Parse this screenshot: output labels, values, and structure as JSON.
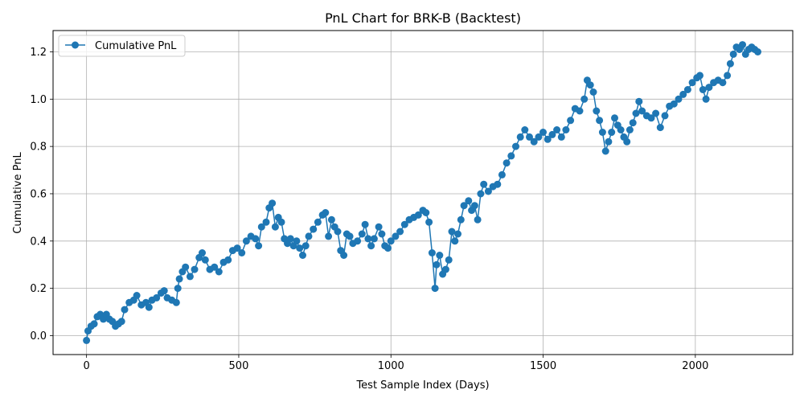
{
  "chart_data": {
    "type": "line",
    "title": "PnL Chart for BRK-B (Backtest)",
    "xlabel": "Test Sample Index (Days)",
    "ylabel": "Cumulative PnL",
    "xlim": [
      -110,
      2320
    ],
    "ylim": [
      -0.08,
      1.29
    ],
    "x_ticks": [
      0,
      500,
      1000,
      1500,
      2000
    ],
    "y_ticks": [
      0.0,
      0.2,
      0.4,
      0.6,
      0.8,
      1.0,
      1.2
    ],
    "grid": true,
    "legend_position": "upper-left",
    "marker": "circle",
    "series": [
      {
        "name": "Cumulative PnL",
        "color": "#1f77b4",
        "points": [
          [
            0,
            -0.02
          ],
          [
            5,
            0.02
          ],
          [
            15,
            0.04
          ],
          [
            25,
            0.05
          ],
          [
            35,
            0.08
          ],
          [
            45,
            0.09
          ],
          [
            55,
            0.07
          ],
          [
            65,
            0.09
          ],
          [
            75,
            0.07
          ],
          [
            85,
            0.06
          ],
          [
            95,
            0.04
          ],
          [
            105,
            0.05
          ],
          [
            115,
            0.06
          ],
          [
            125,
            0.11
          ],
          [
            140,
            0.14
          ],
          [
            155,
            0.15
          ],
          [
            165,
            0.17
          ],
          [
            180,
            0.13
          ],
          [
            195,
            0.14
          ],
          [
            205,
            0.12
          ],
          [
            215,
            0.15
          ],
          [
            230,
            0.16
          ],
          [
            245,
            0.18
          ],
          [
            255,
            0.19
          ],
          [
            265,
            0.16
          ],
          [
            280,
            0.15
          ],
          [
            295,
            0.14
          ],
          [
            300,
            0.2
          ],
          [
            305,
            0.24
          ],
          [
            315,
            0.27
          ],
          [
            325,
            0.29
          ],
          [
            340,
            0.25
          ],
          [
            355,
            0.28
          ],
          [
            370,
            0.33
          ],
          [
            380,
            0.35
          ],
          [
            390,
            0.32
          ],
          [
            405,
            0.28
          ],
          [
            420,
            0.29
          ],
          [
            435,
            0.27
          ],
          [
            450,
            0.31
          ],
          [
            465,
            0.32
          ],
          [
            480,
            0.36
          ],
          [
            495,
            0.37
          ],
          [
            510,
            0.35
          ],
          [
            525,
            0.4
          ],
          [
            540,
            0.42
          ],
          [
            555,
            0.41
          ],
          [
            565,
            0.38
          ],
          [
            575,
            0.46
          ],
          [
            590,
            0.48
          ],
          [
            600,
            0.54
          ],
          [
            610,
            0.56
          ],
          [
            620,
            0.46
          ],
          [
            630,
            0.5
          ],
          [
            640,
            0.48
          ],
          [
            650,
            0.41
          ],
          [
            660,
            0.39
          ],
          [
            670,
            0.41
          ],
          [
            680,
            0.38
          ],
          [
            690,
            0.4
          ],
          [
            700,
            0.37
          ],
          [
            710,
            0.34
          ],
          [
            720,
            0.38
          ],
          [
            730,
            0.42
          ],
          [
            745,
            0.45
          ],
          [
            760,
            0.48
          ],
          [
            775,
            0.51
          ],
          [
            785,
            0.52
          ],
          [
            795,
            0.42
          ],
          [
            805,
            0.49
          ],
          [
            815,
            0.46
          ],
          [
            825,
            0.44
          ],
          [
            835,
            0.36
          ],
          [
            845,
            0.34
          ],
          [
            855,
            0.43
          ],
          [
            865,
            0.42
          ],
          [
            875,
            0.39
          ],
          [
            890,
            0.4
          ],
          [
            905,
            0.43
          ],
          [
            915,
            0.47
          ],
          [
            925,
            0.41
          ],
          [
            935,
            0.38
          ],
          [
            945,
            0.41
          ],
          [
            960,
            0.46
          ],
          [
            970,
            0.43
          ],
          [
            980,
            0.38
          ],
          [
            990,
            0.37
          ],
          [
            1000,
            0.4
          ],
          [
            1015,
            0.42
          ],
          [
            1030,
            0.44
          ],
          [
            1045,
            0.47
          ],
          [
            1060,
            0.49
          ],
          [
            1075,
            0.5
          ],
          [
            1090,
            0.51
          ],
          [
            1105,
            0.53
          ],
          [
            1115,
            0.52
          ],
          [
            1125,
            0.48
          ],
          [
            1135,
            0.35
          ],
          [
            1145,
            0.2
          ],
          [
            1150,
            0.3
          ],
          [
            1160,
            0.34
          ],
          [
            1170,
            0.26
          ],
          [
            1180,
            0.28
          ],
          [
            1190,
            0.32
          ],
          [
            1200,
            0.44
          ],
          [
            1210,
            0.4
          ],
          [
            1220,
            0.43
          ],
          [
            1230,
            0.49
          ],
          [
            1240,
            0.55
          ],
          [
            1255,
            0.57
          ],
          [
            1265,
            0.53
          ],
          [
            1275,
            0.55
          ],
          [
            1285,
            0.49
          ],
          [
            1295,
            0.6
          ],
          [
            1305,
            0.64
          ],
          [
            1320,
            0.61
          ],
          [
            1335,
            0.63
          ],
          [
            1350,
            0.64
          ],
          [
            1365,
            0.68
          ],
          [
            1380,
            0.73
          ],
          [
            1395,
            0.76
          ],
          [
            1410,
            0.8
          ],
          [
            1425,
            0.84
          ],
          [
            1440,
            0.87
          ],
          [
            1455,
            0.84
          ],
          [
            1470,
            0.82
          ],
          [
            1485,
            0.84
          ],
          [
            1500,
            0.86
          ],
          [
            1515,
            0.83
          ],
          [
            1530,
            0.85
          ],
          [
            1545,
            0.87
          ],
          [
            1560,
            0.84
          ],
          [
            1575,
            0.87
          ],
          [
            1590,
            0.91
          ],
          [
            1605,
            0.96
          ],
          [
            1620,
            0.95
          ],
          [
            1635,
            1.0
          ],
          [
            1645,
            1.08
          ],
          [
            1655,
            1.06
          ],
          [
            1665,
            1.03
          ],
          [
            1675,
            0.95
          ],
          [
            1685,
            0.91
          ],
          [
            1695,
            0.86
          ],
          [
            1705,
            0.78
          ],
          [
            1715,
            0.82
          ],
          [
            1725,
            0.86
          ],
          [
            1735,
            0.92
          ],
          [
            1745,
            0.89
          ],
          [
            1755,
            0.87
          ],
          [
            1765,
            0.84
          ],
          [
            1775,
            0.82
          ],
          [
            1785,
            0.87
          ],
          [
            1795,
            0.9
          ],
          [
            1805,
            0.94
          ],
          [
            1815,
            0.99
          ],
          [
            1825,
            0.95
          ],
          [
            1840,
            0.93
          ],
          [
            1855,
            0.92
          ],
          [
            1870,
            0.94
          ],
          [
            1885,
            0.88
          ],
          [
            1900,
            0.93
          ],
          [
            1915,
            0.97
          ],
          [
            1930,
            0.98
          ],
          [
            1945,
            1.0
          ],
          [
            1960,
            1.02
          ],
          [
            1975,
            1.04
          ],
          [
            1990,
            1.07
          ],
          [
            2005,
            1.09
          ],
          [
            2015,
            1.1
          ],
          [
            2025,
            1.04
          ],
          [
            2035,
            1.0
          ],
          [
            2045,
            1.05
          ],
          [
            2060,
            1.07
          ],
          [
            2075,
            1.08
          ],
          [
            2090,
            1.07
          ],
          [
            2105,
            1.1
          ],
          [
            2115,
            1.15
          ],
          [
            2125,
            1.19
          ],
          [
            2135,
            1.22
          ],
          [
            2145,
            1.21
          ],
          [
            2155,
            1.23
          ],
          [
            2165,
            1.19
          ],
          [
            2175,
            1.21
          ],
          [
            2185,
            1.22
          ],
          [
            2195,
            1.21
          ],
          [
            2205,
            1.2
          ]
        ]
      }
    ]
  }
}
